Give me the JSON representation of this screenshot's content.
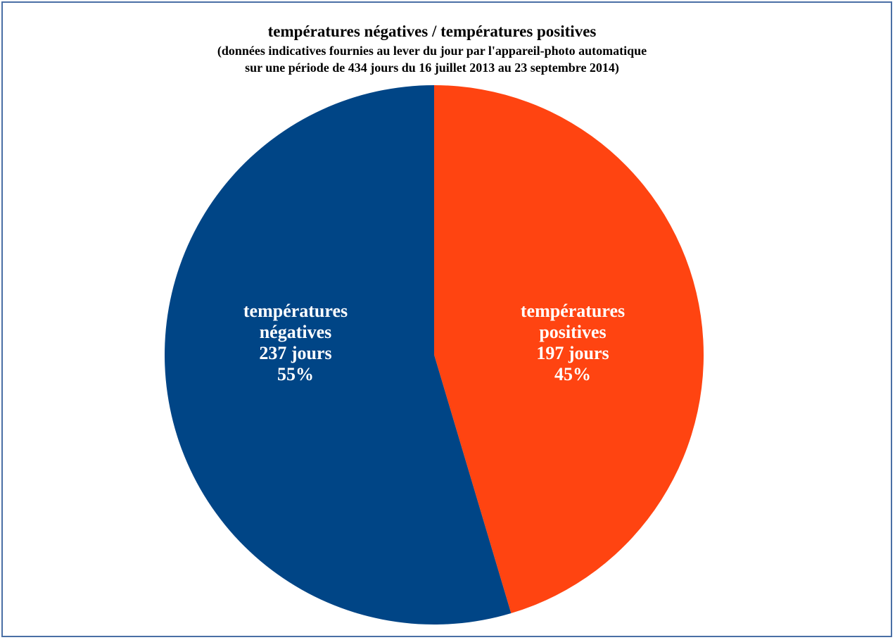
{
  "chart_data": {
    "type": "pie",
    "title": "températures négatives / températures positives",
    "subtitle": [
      "(données indicatives fournies au lever du jour par l'appareil-photo automatique",
      "sur une période de 434 jours du 16 juillet 2013 au 23 septembre 2014)"
    ],
    "slices": [
      {
        "label_lines": [
          "températures",
          "positives",
          "197 jours",
          "45%"
        ],
        "value": 197,
        "percent": 45,
        "color": "#ff4411"
      },
      {
        "label_lines": [
          "températures",
          "négatives",
          "237 jours",
          "55%"
        ],
        "value": 237,
        "percent": 55,
        "color": "#004586"
      }
    ],
    "start": "12 o'clock, clockwise"
  }
}
